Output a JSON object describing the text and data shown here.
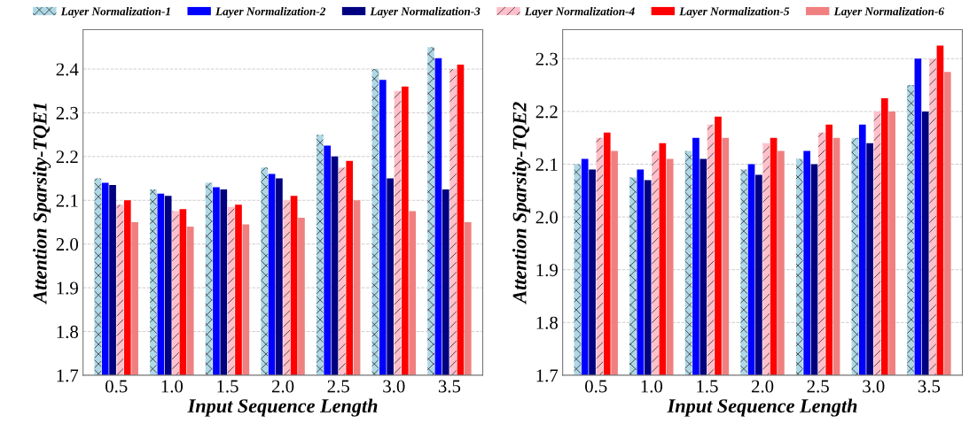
{
  "chart_data": [
    {
      "type": "bar",
      "xlabel": "Input Sequence Length",
      "ylabel": "Attention Sparsity-TQE1",
      "categories": [
        "0.5",
        "1.0",
        "1.5",
        "2.0",
        "2.5",
        "3.0",
        "3.5"
      ],
      "ylim": [
        1.7,
        2.49
      ],
      "yticks": [
        1.7,
        1.8,
        1.9,
        {
          "value": 2,
          "label": "2.0"
        },
        2.1,
        2.2,
        2.3,
        2.4
      ],
      "grid": "y",
      "legend": "top",
      "series": [
        {
          "name": "Layer Normalization-1",
          "color": "#add8e6",
          "values": [
            2.15,
            2.125,
            2.14,
            2.175,
            2.25,
            2.4,
            2.45
          ]
        },
        {
          "name": "Layer Normalization-2",
          "color": "#0000ff",
          "values": [
            2.14,
            2.115,
            2.13,
            2.16,
            2.225,
            2.375,
            2.425
          ]
        },
        {
          "name": "Layer Normalization-3",
          "color": "#000080",
          "values": [
            2.135,
            2.11,
            2.125,
            2.15,
            2.2,
            2.15,
            2.125
          ]
        },
        {
          "name": "Layer Normalization-4",
          "color": "#ffc0cb",
          "values": [
            2.09,
            2.075,
            2.085,
            2.1,
            2.175,
            2.35,
            2.4
          ]
        },
        {
          "name": "Layer Normalization-5",
          "color": "#ff0000",
          "values": [
            2.1,
            2.08,
            2.09,
            2.11,
            2.19,
            2.36,
            2.41
          ]
        },
        {
          "name": "Layer Normalization-6",
          "color": "#f08080",
          "values": [
            2.05,
            2.04,
            2.045,
            2.06,
            2.1,
            2.075,
            2.05
          ]
        }
      ]
    },
    {
      "type": "bar",
      "xlabel": "Input Sequence Length",
      "ylabel": "Attention Sparsity-TQE2",
      "categories": [
        "0.5",
        "1.0",
        "1.5",
        "2.0",
        "2.5",
        "3.0",
        "3.5"
      ],
      "ylim": [
        1.7,
        2.355
      ],
      "yticks": [
        1.7,
        1.8,
        1.9,
        {
          "value": 2,
          "label": "2.0"
        },
        2.1,
        2.2,
        2.3
      ],
      "grid": "y",
      "series": [
        {
          "color": "#add8e6",
          "values": [
            2.1,
            2.075,
            2.125,
            2.09,
            2.11,
            2.15,
            2.25
          ]
        },
        {
          "color": "#0000ff",
          "values": [
            2.11,
            2.09,
            2.15,
            2.1,
            2.125,
            2.175,
            2.3
          ]
        },
        {
          "color": "#000080",
          "values": [
            2.09,
            2.07,
            2.11,
            2.08,
            2.1,
            2.14,
            2.2
          ]
        },
        {
          "color": "#ffc0cb",
          "values": [
            2.15,
            2.125,
            2.175,
            2.14,
            2.16,
            2.2,
            2.3
          ]
        },
        {
          "color": "#ff0000",
          "values": [
            2.16,
            2.14,
            2.19,
            2.15,
            2.175,
            2.225,
            2.325
          ]
        },
        {
          "color": "#f08080",
          "values": [
            2.125,
            2.11,
            2.15,
            2.125,
            2.15,
            2.2,
            2.275
          ]
        }
      ]
    }
  ]
}
